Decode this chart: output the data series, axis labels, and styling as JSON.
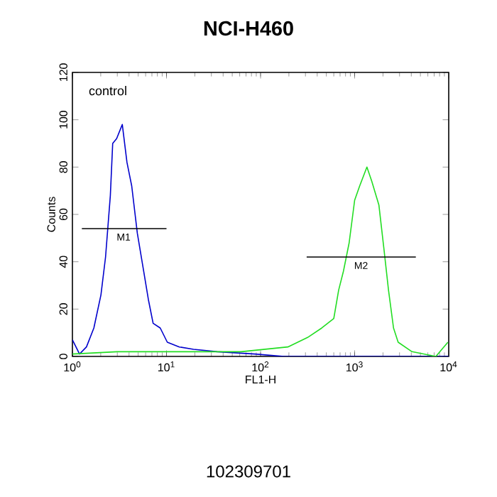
{
  "chart_data": {
    "type": "line",
    "title": "NCI-H460",
    "xlabel": "FL1-H",
    "ylabel": "Counts",
    "log": "x",
    "xlim": [
      1,
      10000
    ],
    "ylim": [
      0,
      120
    ],
    "xticks": [
      {
        "value": 1,
        "label": "10$^{0}$"
      },
      {
        "value": 10,
        "label": "10$^{1}$"
      },
      {
        "value": 100,
        "label": "10$^{2}$"
      },
      {
        "value": 1000,
        "label": "10$^{3}$"
      },
      {
        "value": 10000,
        "label": "10$^{4}$"
      }
    ],
    "yticks": [
      0,
      20,
      40,
      60,
      80,
      100,
      120
    ],
    "grid": false,
    "marker": "none",
    "line_style": "solid",
    "annotations": [
      "control",
      {
        "text": "M1",
        "x": 3.5,
        "y": 54
      },
      {
        "text": "M2",
        "x": 1170,
        "y": 42
      },
      "102309701"
    ],
    "series": [
      {
        "color": "#0000cc",
        "x": [
          1.0,
          1.19,
          1.41,
          1.69,
          2.01,
          2.25,
          2.53,
          2.68,
          2.95,
          3.39,
          3.8,
          4.27,
          4.9,
          5.72,
          6.42,
          7.21,
          8.58,
          10.2,
          13.7,
          19.4,
          34.6,
          87,
          178,
          1000,
          10000
        ],
        "values": [
          7,
          1,
          4,
          12,
          26,
          42,
          68,
          90,
          92,
          98,
          82,
          72,
          52,
          36,
          24,
          14,
          12,
          6,
          4,
          3,
          2,
          1,
          0,
          0,
          0
        ]
      },
      {
        "color": "#22dd22",
        "x": [
          1,
          3,
          10,
          30,
          62,
          195,
          316,
          447,
          600,
          676,
          760,
          874,
          1000,
          1130,
          1350,
          1520,
          1810,
          2040,
          2290,
          2590,
          2900,
          4070,
          7300,
          9800
        ],
        "values": [
          1,
          2,
          2,
          2,
          2,
          4,
          8,
          12,
          16,
          28,
          36,
          48,
          66,
          72,
          80,
          74,
          64,
          46,
          28,
          12,
          6,
          2,
          0,
          6
        ]
      },
      {
        "color": "#000000",
        "x": [
          1.26,
          10
        ],
        "values": [
          54,
          54
        ]
      },
      {
        "color": "#000000",
        "x": [
          309,
          4470
        ],
        "values": [
          42,
          42
        ]
      }
    ]
  }
}
